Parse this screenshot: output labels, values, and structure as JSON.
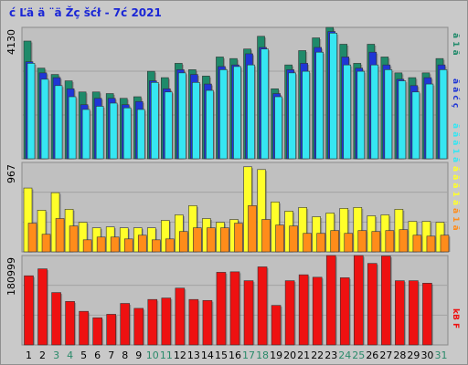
{
  "title": "ć Ľä ä ¨ä Žç šćł - 7ć 2021",
  "colors": {
    "bg": "#c9c9c9",
    "plot_bg": "#c0c0c0",
    "grid": "#a2a2a2",
    "title": "#1a26d6",
    "s1": "#1f8a6a",
    "s2": "#1f36d6",
    "s3": "#36e6f2",
    "s4": "#ffff2a",
    "s5": "#ff8c1a",
    "s6": "#ee1111",
    "weekend_day": "#2a8a6a"
  },
  "legend": {
    "series1": "ă 1 ă",
    "series2": "ă ă ć ç",
    "series3": "ă ă ă 1 ă",
    "series4": "ă ă ă 1 ă",
    "series5": "ă 1 ă",
    "series6": "kB F"
  },
  "chart_data": [
    {
      "type": "bar",
      "name": "top",
      "ytick_label": "4130",
      "ylim": [
        0,
        4130
      ],
      "grid_values": [
        1377,
        2753
      ],
      "categories": [
        "1",
        "2",
        "3",
        "4",
        "5",
        "6",
        "7",
        "8",
        "9",
        "10",
        "11",
        "12",
        "13",
        "14",
        "15",
        "16",
        "17",
        "18",
        "19",
        "20",
        "21",
        "22",
        "23",
        "24",
        "25",
        "26",
        "27",
        "28",
        "29",
        "30",
        "31"
      ],
      "series": [
        {
          "key": "s1",
          "values": [
            3700,
            2850,
            2650,
            2450,
            2100,
            2100,
            2050,
            1900,
            1950,
            2750,
            2550,
            3000,
            2800,
            2600,
            3200,
            3150,
            3450,
            3850,
            2200,
            2950,
            3400,
            3800,
            4130,
            3600,
            3000,
            3600,
            3200,
            2700,
            2550,
            2700,
            3150
          ]
        },
        {
          "key": "s2",
          "values": [
            3050,
            2700,
            2550,
            2200,
            1700,
            1900,
            1900,
            1700,
            1800,
            2450,
            2200,
            2800,
            2650,
            2350,
            2900,
            2950,
            3300,
            3500,
            2050,
            2800,
            3000,
            3500,
            4000,
            3200,
            2850,
            3350,
            2950,
            2500,
            2300,
            2550,
            2950
          ]
        },
        {
          "key": "s3",
          "values": [
            3000,
            2500,
            2300,
            1950,
            1550,
            1650,
            1750,
            1600,
            1550,
            2400,
            2100,
            2700,
            2400,
            2150,
            2800,
            2900,
            2950,
            3450,
            1950,
            2700,
            2750,
            3350,
            3950,
            2950,
            2750,
            2950,
            2800,
            2450,
            2100,
            2350,
            2800
          ]
        }
      ]
    },
    {
      "type": "bar",
      "name": "middle",
      "ytick_label": "967",
      "ylim": [
        0,
        967
      ],
      "grid_values": [
        322,
        645
      ],
      "categories": [
        "1",
        "2",
        "3",
        "4",
        "5",
        "6",
        "7",
        "8",
        "9",
        "10",
        "11",
        "12",
        "13",
        "14",
        "15",
        "16",
        "17",
        "18",
        "19",
        "20",
        "21",
        "22",
        "23",
        "24",
        "25",
        "26",
        "27",
        "28",
        "29",
        "30",
        "31"
      ],
      "series": [
        {
          "key": "s4",
          "values": [
            690,
            450,
            640,
            460,
            320,
            260,
            270,
            260,
            260,
            260,
            340,
            400,
            500,
            360,
            320,
            350,
            920,
            890,
            540,
            440,
            480,
            380,
            420,
            470,
            480,
            390,
            400,
            460,
            330,
            330,
            320
          ]
        },
        {
          "key": "s5",
          "values": [
            310,
            190,
            360,
            280,
            130,
            160,
            160,
            140,
            180,
            130,
            140,
            220,
            260,
            260,
            260,
            310,
            500,
            350,
            290,
            280,
            200,
            200,
            230,
            200,
            230,
            220,
            230,
            240,
            180,
            170,
            180
          ]
        }
      ]
    },
    {
      "type": "bar",
      "name": "bottom",
      "ytick_label": "180999",
      "ylim": [
        0,
        180999
      ],
      "grid_values": [
        60333,
        120666
      ],
      "categories": [
        "1",
        "2",
        "3",
        "4",
        "5",
        "6",
        "7",
        "8",
        "9",
        "10",
        "11",
        "12",
        "13",
        "14",
        "15",
        "16",
        "17",
        "18",
        "19",
        "20",
        "21",
        "22",
        "23",
        "24",
        "25",
        "26",
        "27",
        "28",
        "29",
        "30",
        "31"
      ],
      "series": [
        {
          "key": "s6",
          "values": [
            140000,
            154000,
            106000,
            88000,
            68000,
            55000,
            62000,
            84000,
            74000,
            92000,
            95000,
            115000,
            92000,
            90000,
            147000,
            148000,
            130000,
            158000,
            80000,
            130000,
            142000,
            137000,
            185000,
            136000,
            185000,
            165000,
            180000,
            130000,
            130000,
            125000,
            0
          ]
        }
      ]
    }
  ],
  "x_labels": [
    {
      "text": "1",
      "weekend": false
    },
    {
      "text": "2",
      "weekend": false
    },
    {
      "text": "3",
      "weekend": true
    },
    {
      "text": "4",
      "weekend": true
    },
    {
      "text": "5",
      "weekend": false
    },
    {
      "text": "6",
      "weekend": false
    },
    {
      "text": "7",
      "weekend": false
    },
    {
      "text": "8",
      "weekend": false
    },
    {
      "text": "9",
      "weekend": false
    },
    {
      "text": "10",
      "weekend": true
    },
    {
      "text": "11",
      "weekend": true
    },
    {
      "text": "12",
      "weekend": false
    },
    {
      "text": "13",
      "weekend": false
    },
    {
      "text": "14",
      "weekend": false
    },
    {
      "text": "15",
      "weekend": false
    },
    {
      "text": "16",
      "weekend": false
    },
    {
      "text": "17",
      "weekend": true
    },
    {
      "text": "18",
      "weekend": true
    },
    {
      "text": "19",
      "weekend": false
    },
    {
      "text": "20",
      "weekend": false
    },
    {
      "text": "21",
      "weekend": false
    },
    {
      "text": "22",
      "weekend": false
    },
    {
      "text": "23",
      "weekend": false
    },
    {
      "text": "24",
      "weekend": true
    },
    {
      "text": "25",
      "weekend": true
    },
    {
      "text": "26",
      "weekend": false
    },
    {
      "text": "27",
      "weekend": false
    },
    {
      "text": "28",
      "weekend": false
    },
    {
      "text": "29",
      "weekend": false
    },
    {
      "text": "30",
      "weekend": false
    },
    {
      "text": "31",
      "weekend": true
    }
  ]
}
